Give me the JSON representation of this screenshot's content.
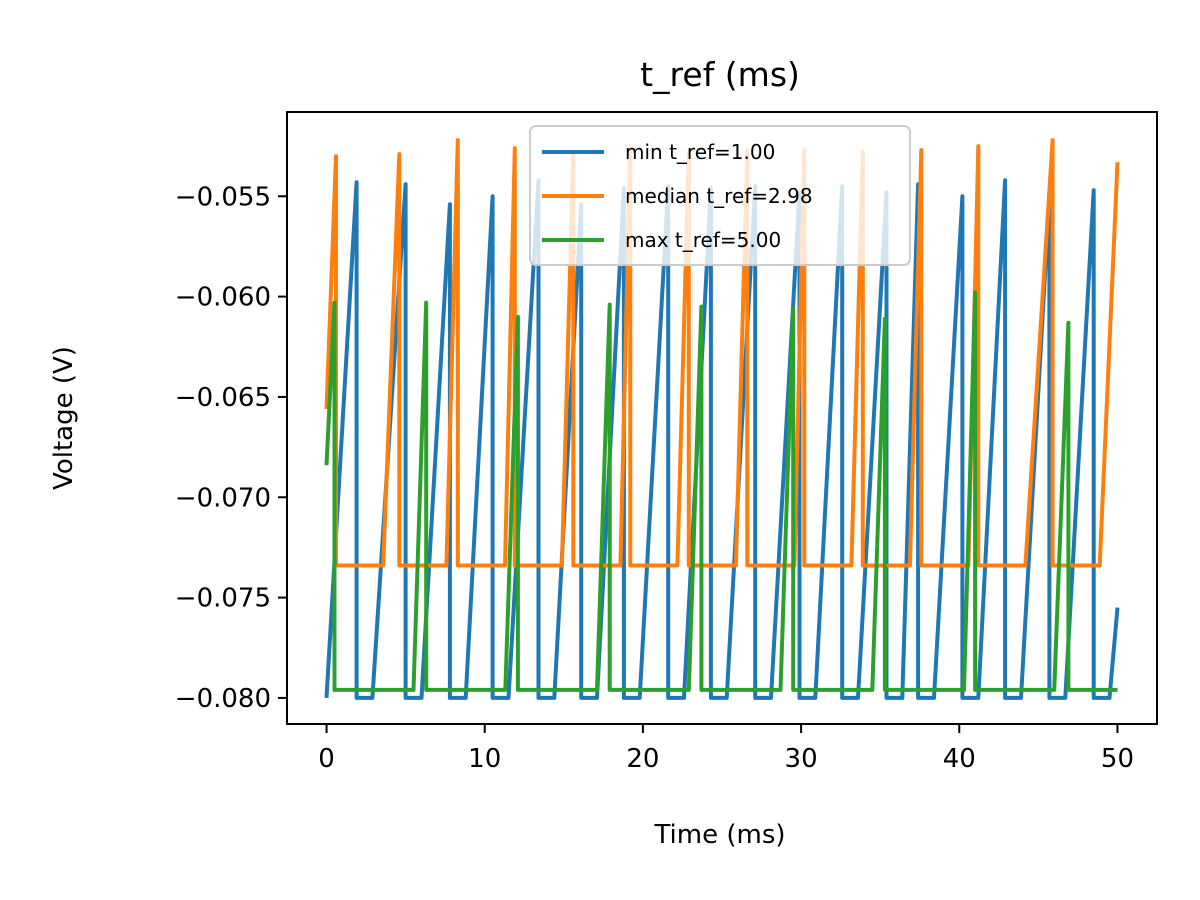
{
  "chart_data": {
    "type": "line",
    "title": "t_ref (ms)",
    "xlabel": "Time (ms)",
    "ylabel": "Voltage (V)",
    "xlim": [
      -2.5,
      52.5
    ],
    "ylim": [
      -0.0813,
      -0.0508
    ],
    "x_ticks": [
      0,
      10,
      20,
      30,
      40,
      50
    ],
    "x_tick_labels": [
      "0",
      "10",
      "20",
      "30",
      "40",
      "50"
    ],
    "y_ticks": [
      -0.08,
      -0.075,
      -0.07,
      -0.065,
      -0.06,
      -0.055
    ],
    "y_tick_labels": [
      "−0.080",
      "−0.075",
      "−0.070",
      "−0.065",
      "−0.060",
      "−0.055"
    ],
    "grid": false,
    "legend_position": "top-center",
    "series": [
      {
        "name": "min t_ref=1.00",
        "color": "#1f77b4",
        "t_ref": 1.0,
        "v_reset": -0.08,
        "start_v": -0.08,
        "end_v": -0.0755,
        "spikes": [
          [
            1.9,
            -0.0543
          ],
          [
            5.0,
            -0.0544
          ],
          [
            7.8,
            -0.0554
          ],
          [
            10.5,
            -0.055
          ],
          [
            13.4,
            -0.0542
          ],
          [
            16.1,
            -0.0554
          ],
          [
            18.8,
            -0.0546
          ],
          [
            21.6,
            -0.0545
          ],
          [
            24.3,
            -0.0546
          ],
          [
            27.1,
            -0.0545
          ],
          [
            29.9,
            -0.0548
          ],
          [
            32.6,
            -0.0545
          ],
          [
            35.4,
            -0.0548
          ],
          [
            37.4,
            -0.0544
          ],
          [
            40.2,
            -0.055
          ],
          [
            42.9,
            -0.0542
          ],
          [
            45.7,
            -0.055
          ],
          [
            48.5,
            -0.0547
          ]
        ]
      },
      {
        "name": "median t_ref=2.98",
        "color": "#ff7f0e",
        "t_ref": 2.98,
        "v_reset": -0.0734,
        "start_v": -0.0656,
        "end_v": -0.0533,
        "spikes": [
          [
            0.6,
            -0.053
          ],
          [
            4.6,
            -0.0529
          ],
          [
            8.3,
            -0.0522
          ],
          [
            11.9,
            -0.0526
          ],
          [
            15.6,
            -0.0528
          ],
          [
            19.2,
            -0.0526
          ],
          [
            22.9,
            -0.0528
          ],
          [
            26.6,
            -0.0527
          ],
          [
            30.2,
            -0.0527
          ],
          [
            33.9,
            -0.0528
          ],
          [
            37.6,
            -0.0527
          ],
          [
            41.2,
            -0.0525
          ],
          [
            45.9,
            -0.0522
          ]
        ]
      },
      {
        "name": "max t_ref=5.00",
        "color": "#2ca02c",
        "t_ref": 5.0,
        "v_reset": -0.0796,
        "start_v": -0.0684,
        "end_v": -0.0796,
        "spikes": [
          [
            0.5,
            -0.0603
          ],
          [
            6.3,
            -0.0603
          ],
          [
            12.1,
            -0.061
          ],
          [
            17.9,
            -0.0604
          ],
          [
            23.7,
            -0.0605
          ],
          [
            29.5,
            -0.0606
          ],
          [
            35.3,
            -0.0611
          ],
          [
            41.0,
            -0.0598
          ],
          [
            46.9,
            -0.0613
          ]
        ]
      }
    ]
  }
}
